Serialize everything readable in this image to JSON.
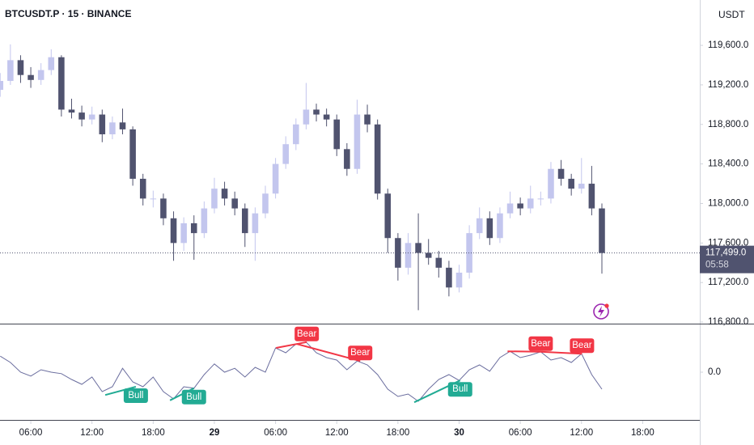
{
  "chart_data": {
    "type": "candlestick",
    "title": "BTCUSDT.P · 15 · BINANCE",
    "currency": "USDT",
    "up_color": "#c3c6ee",
    "down_color": "#50536f",
    "x": [
      3,
      4,
      5,
      6,
      7,
      8,
      9,
      10,
      11,
      12,
      13,
      14,
      15,
      16,
      17,
      18,
      19,
      20,
      21,
      22,
      23,
      24,
      25,
      26,
      27,
      28,
      29,
      30,
      31,
      32,
      33,
      34,
      35,
      36,
      37,
      38,
      39,
      40,
      41,
      42,
      43,
      44,
      45,
      46,
      47,
      48,
      49,
      50,
      51,
      52,
      53,
      54,
      55,
      56,
      57,
      58,
      59,
      60,
      61,
      62
    ],
    "candles": [
      [
        119150,
        119320,
        119080,
        119240
      ],
      [
        119240,
        119610,
        119200,
        119450
      ],
      [
        119450,
        119500,
        119220,
        119300
      ],
      [
        119300,
        119380,
        119170,
        119250
      ],
      [
        119250,
        119420,
        119200,
        119350
      ],
      [
        119350,
        119560,
        119300,
        119480
      ],
      [
        119480,
        119500,
        118880,
        118950
      ],
      [
        118950,
        119060,
        118860,
        118920
      ],
      [
        118920,
        118990,
        118780,
        118850
      ],
      [
        118850,
        118980,
        118800,
        118900
      ],
      [
        118900,
        118950,
        118620,
        118700
      ],
      [
        118700,
        118880,
        118650,
        118820
      ],
      [
        118820,
        118960,
        118700,
        118750
      ],
      [
        118750,
        118780,
        118180,
        118250
      ],
      [
        118250,
        118300,
        117980,
        118050
      ],
      [
        118050,
        118130,
        117960,
        118050
      ],
      [
        118050,
        118100,
        117780,
        117850
      ],
      [
        117850,
        117920,
        117420,
        117600
      ],
      [
        117600,
        117860,
        117520,
        117800
      ],
      [
        117800,
        117880,
        117430,
        117700
      ],
      [
        117700,
        118020,
        117650,
        117950
      ],
      [
        117950,
        118260,
        117900,
        118150
      ],
      [
        118150,
        118220,
        117980,
        118050
      ],
      [
        118050,
        118120,
        117880,
        117950
      ],
      [
        117950,
        118000,
        117560,
        117700
      ],
      [
        117700,
        117960,
        117420,
        117900
      ],
      [
        117900,
        118180,
        117850,
        118100
      ],
      [
        118100,
        118460,
        118050,
        118400
      ],
      [
        118400,
        118680,
        118350,
        118600
      ],
      [
        118600,
        118860,
        118540,
        118800
      ],
      [
        118800,
        119220,
        118750,
        118950
      ],
      [
        118950,
        119010,
        118830,
        118900
      ],
      [
        118900,
        118960,
        118780,
        118850
      ],
      [
        118850,
        118900,
        118480,
        118550
      ],
      [
        118550,
        118610,
        118280,
        118350
      ],
      [
        118350,
        119050,
        118300,
        118900
      ],
      [
        118900,
        119000,
        118720,
        118800
      ],
      [
        118800,
        118850,
        118040,
        118100
      ],
      [
        118100,
        118150,
        117500,
        117650
      ],
      [
        117650,
        117700,
        117220,
        117350
      ],
      [
        117350,
        117700,
        117280,
        117600
      ],
      [
        117600,
        117900,
        116920,
        117500
      ],
      [
        117500,
        117640,
        117380,
        117450
      ],
      [
        117450,
        117520,
        117250,
        117350
      ],
      [
        117350,
        117420,
        117060,
        117150
      ],
      [
        117150,
        117380,
        117100,
        117300
      ],
      [
        117300,
        117780,
        117240,
        117700
      ],
      [
        117700,
        117960,
        117640,
        117850
      ],
      [
        117850,
        117920,
        117580,
        117650
      ],
      [
        117650,
        117960,
        117600,
        117900
      ],
      [
        117900,
        118120,
        117850,
        118000
      ],
      [
        118000,
        118060,
        117880,
        117950
      ],
      [
        117950,
        118180,
        117900,
        118050
      ],
      [
        118050,
        118120,
        117980,
        118050
      ],
      [
        118050,
        118420,
        118000,
        118350
      ],
      [
        118350,
        118440,
        118180,
        118250
      ],
      [
        118250,
        118300,
        118080,
        118150
      ],
      [
        118150,
        118460,
        118100,
        118200
      ],
      [
        118200,
        118380,
        117880,
        117950
      ],
      [
        117950,
        118000,
        117290,
        117499
      ]
    ],
    "xlim": [
      2.98,
      71.6
    ],
    "xticks": [
      {
        "value": 6,
        "label": "06:00"
      },
      {
        "value": 12,
        "label": "12:00"
      },
      {
        "value": 18,
        "label": "18:00"
      },
      {
        "value": 24,
        "label": "29"
      },
      {
        "value": 30,
        "label": "06:00"
      },
      {
        "value": 36,
        "label": "12:00"
      },
      {
        "value": 42,
        "label": "18:00"
      },
      {
        "value": 48,
        "label": "30"
      },
      {
        "value": 54,
        "label": "06:00"
      },
      {
        "value": 60,
        "label": "12:00"
      },
      {
        "value": 66,
        "label": "18:00"
      }
    ],
    "ylim": [
      116784,
      120059
    ],
    "yticks": [
      {
        "value": 116800,
        "label": "116,800.0"
      },
      {
        "value": 117200,
        "label": "117,200.0"
      },
      {
        "value": 117600,
        "label": "117,600.0"
      },
      {
        "value": 118000,
        "label": "118,000.0"
      },
      {
        "value": 118400,
        "label": "118,400.0"
      },
      {
        "value": 118800,
        "label": "118,800.0"
      },
      {
        "value": 119200,
        "label": "119,200.0"
      },
      {
        "value": 119600,
        "label": "119,600.0"
      }
    ],
    "last_price": {
      "value": 117499,
      "label": "117,499.0"
    },
    "countdown": "05:58",
    "oscillator": {
      "color": "#6a6d9e",
      "values": [
        0.33,
        0.2,
        0.0,
        -0.08,
        0.05,
        0.0,
        -0.03,
        -0.15,
        -0.25,
        -0.1,
        -0.4,
        -0.3,
        0.08,
        -0.2,
        -0.3,
        -0.1,
        -0.4,
        -0.55,
        -0.3,
        -0.33,
        -0.05,
        0.17,
        0.0,
        0.08,
        -0.1,
        0.1,
        0.0,
        0.5,
        0.4,
        0.58,
        0.62,
        0.4,
        0.3,
        0.25,
        0.05,
        0.23,
        0.15,
        -0.05,
        -0.35,
        -0.5,
        -0.45,
        -0.6,
        -0.35,
        -0.15,
        -0.05,
        -0.17,
        0.05,
        0.15,
        0.02,
        0.3,
        0.43,
        0.3,
        0.35,
        0.42,
        0.25,
        0.3,
        0.2,
        0.38,
        -0.05,
        -0.35
      ],
      "ylim": [
        -1,
        1
      ],
      "yticks": [
        {
          "value": 0,
          "label": "0.0"
        }
      ],
      "divergences": [
        {
          "label": "Bull",
          "color": "#22ab94",
          "x": [
            13.3,
            16.3
          ],
          "values": [
            -0.47,
            -0.3
          ]
        },
        {
          "label": "Bull",
          "color": "#22ab94",
          "x": [
            19.65,
            22.0
          ],
          "values": [
            -0.58,
            -0.33
          ]
        },
        {
          "label": "Bull",
          "color": "#22ab94",
          "x": [
            43.6,
            48.1
          ],
          "values": [
            -0.62,
            -0.17
          ]
        },
        {
          "label": "Bear",
          "color": "#f23645",
          "x": [
            30.05,
            33.06
          ],
          "values": [
            0.5,
            0.62
          ]
        },
        {
          "label": "Bear",
          "color": "#f23645",
          "x": [
            32.1,
            38.3
          ],
          "values": [
            0.58,
            0.23
          ]
        },
        {
          "label": "Bear",
          "color": "#f23645",
          "x": [
            52.75,
            56.0
          ],
          "values": [
            0.43,
            0.42
          ]
        },
        {
          "label": "Bear",
          "color": "#f23645",
          "x": [
            56.0,
            60.05
          ],
          "values": [
            0.42,
            0.38
          ]
        }
      ]
    }
  }
}
